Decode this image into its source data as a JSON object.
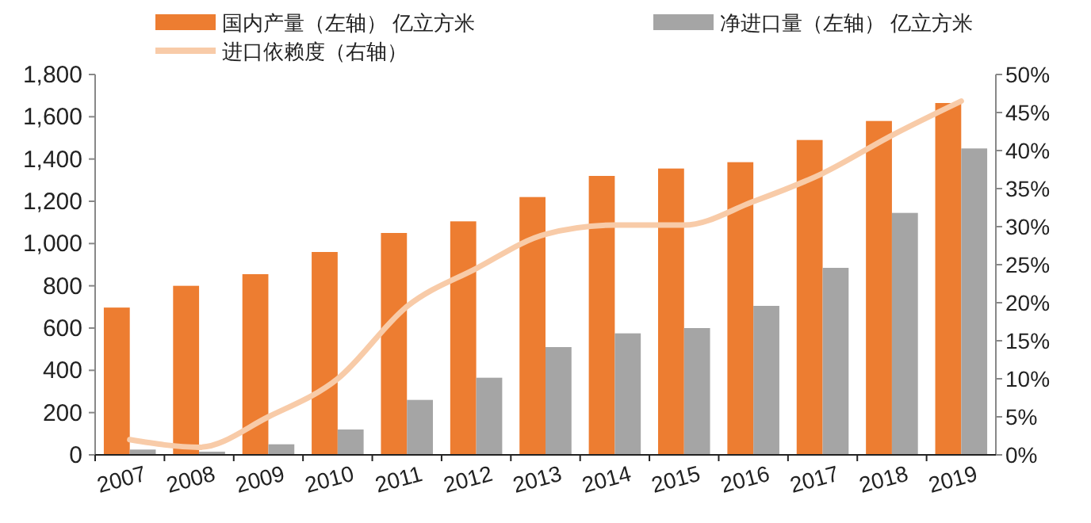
{
  "chart_data": {
    "type": "bar",
    "categories": [
      "2007",
      "2008",
      "2009",
      "2010",
      "2011",
      "2012",
      "2013",
      "2014",
      "2015",
      "2016",
      "2017",
      "2018",
      "2019"
    ],
    "series": [
      {
        "name": "国内产量（左轴） 亿立方米",
        "color": "#ed7d31",
        "values": [
          697,
          800,
          855,
          960,
          1050,
          1105,
          1220,
          1320,
          1355,
          1385,
          1490,
          1580,
          1665
        ]
      },
      {
        "name": "净进口量（左轴） 亿立方米",
        "color": "#a5a5a5",
        "values": [
          25,
          15,
          50,
          120,
          260,
          365,
          510,
          575,
          600,
          705,
          885,
          1145,
          1450
        ]
      },
      {
        "name": "进口依赖度（右轴）",
        "color": "#f8cba8",
        "type": "line",
        "axis": "y2",
        "values": [
          2,
          1,
          5,
          10,
          19.5,
          24.5,
          29,
          30.2,
          30.2,
          33.3,
          37,
          42,
          46.5
        ]
      }
    ],
    "ylim": [
      0,
      1800
    ],
    "yticks": [
      {
        "value": 0,
        "label": "0"
      },
      {
        "value": 200,
        "label": "200"
      },
      {
        "value": 400,
        "label": "400"
      },
      {
        "value": 600,
        "label": "600"
      },
      {
        "value": 800,
        "label": "800"
      },
      {
        "value": 1000,
        "label": "1,000"
      },
      {
        "value": 1200,
        "label": "1,200"
      },
      {
        "value": 1400,
        "label": "1,400"
      },
      {
        "value": 1600,
        "label": "1,600"
      },
      {
        "value": 1800,
        "label": "1,800"
      }
    ],
    "y2lim": [
      0,
      50
    ],
    "y2ticks": [
      {
        "value": 0,
        "label": "0%"
      },
      {
        "value": 5,
        "label": "5%"
      },
      {
        "value": 10,
        "label": "10%"
      },
      {
        "value": 15,
        "label": "15%"
      },
      {
        "value": 20,
        "label": "20%"
      },
      {
        "value": 25,
        "label": "25%"
      },
      {
        "value": 30,
        "label": "30%"
      },
      {
        "value": 35,
        "label": "35%"
      },
      {
        "value": 40,
        "label": "40%"
      },
      {
        "value": 45,
        "label": "45%"
      },
      {
        "value": 50,
        "label": "50%"
      }
    ],
    "legend": "top",
    "grid": false,
    "marker": "none",
    "line_style": "solid"
  }
}
